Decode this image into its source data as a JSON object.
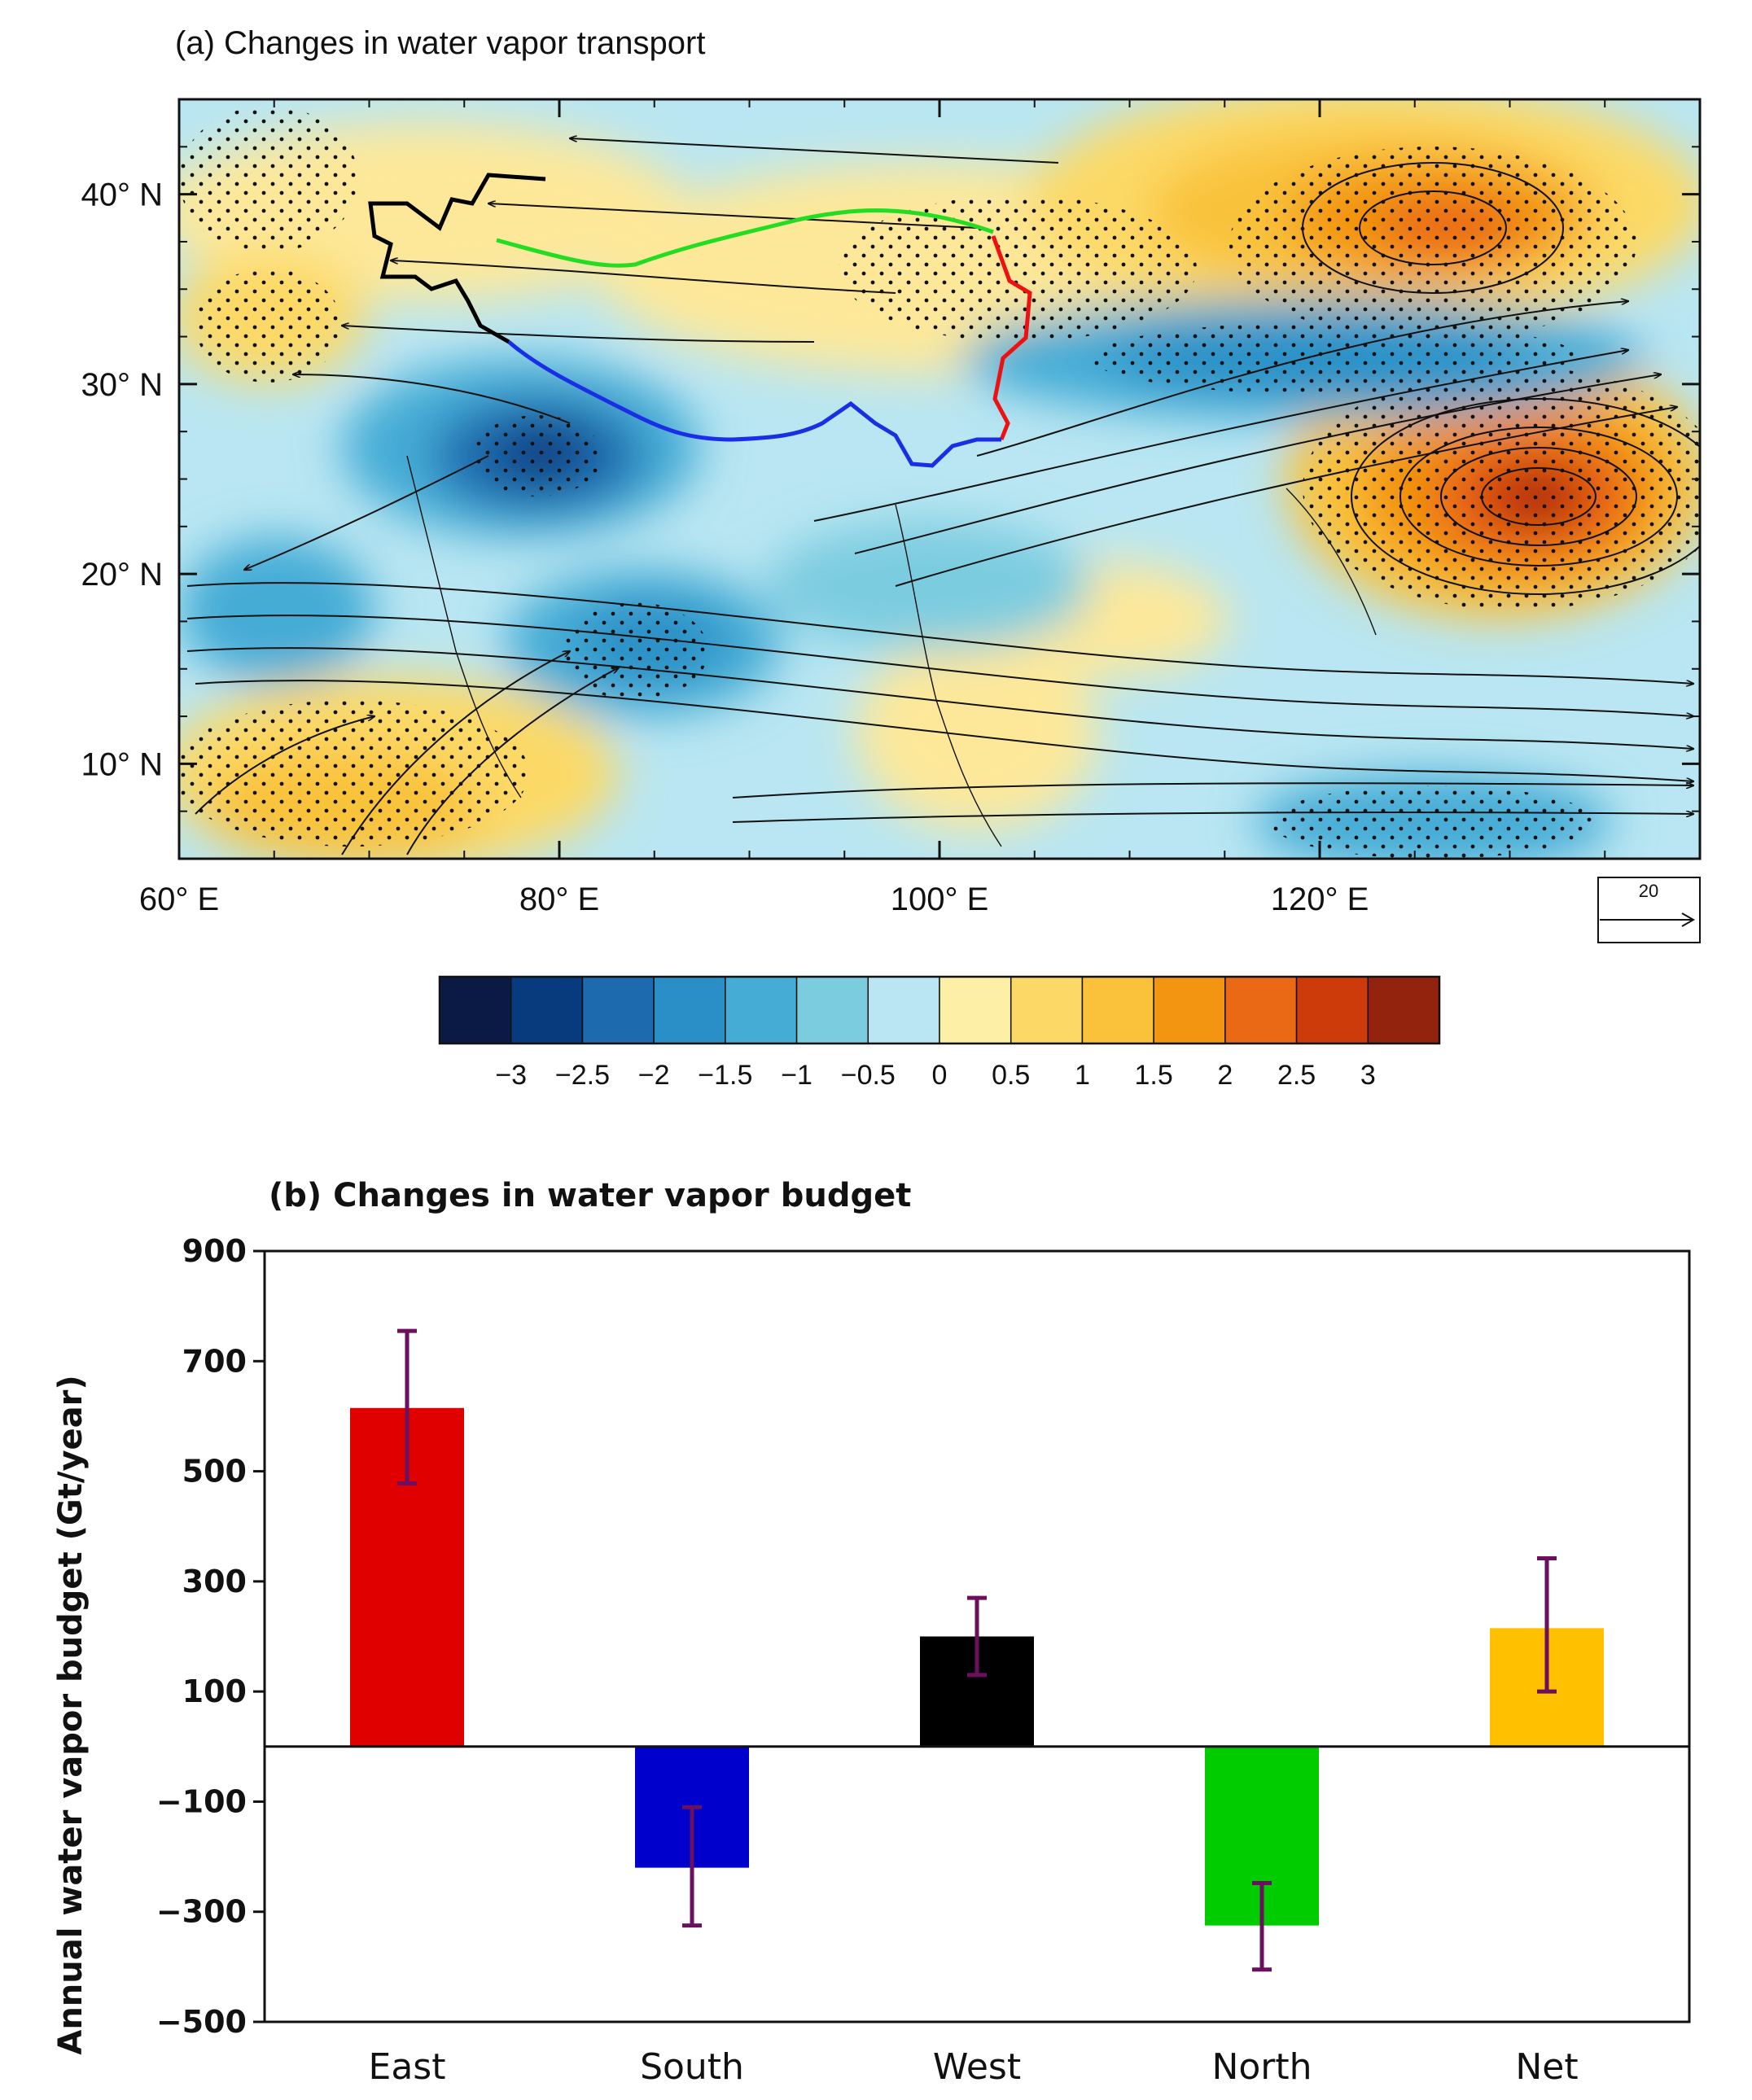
{
  "chart_data": [
    {
      "type": "heatmap",
      "title": "(a) Changes in water vapor transport",
      "x_ticks": [
        "60° E",
        "80° E",
        "100° E",
        "120° E"
      ],
      "x_tick_values": [
        60,
        80,
        100,
        120
      ],
      "y_ticks": [
        "10° N",
        "20° N",
        "30° N",
        "40° N"
      ],
      "y_tick_values": [
        10,
        20,
        30,
        40
      ],
      "xlim": [
        60,
        140
      ],
      "ylim": [
        5,
        45
      ],
      "reference_vector": "20",
      "colorbar": {
        "labels": [
          "−3",
          "−2.5",
          "−2",
          "−1.5",
          "−1",
          "−0.5",
          "0",
          "0.5",
          "1",
          "1.5",
          "2",
          "2.5",
          "3"
        ],
        "colors": [
          "#0a1a45",
          "#083a7e",
          "#1d6bae",
          "#2a8fc6",
          "#45acd6",
          "#7ccce0",
          "#b9e6f2",
          "#fdf0a6",
          "#fcd966",
          "#f9c23a",
          "#f39511",
          "#ea6914",
          "#cd3b0a",
          "#94230e"
        ]
      },
      "features": [
        {
          "name": "Anticyclone (positive anomaly) near 128° E, 24° N",
          "value": 3
        },
        {
          "name": "Positive anomaly near 125° E, 39° N",
          "value": 2
        },
        {
          "name": "Negative anomaly near 79° E, 27° N",
          "value": -3
        },
        {
          "name": "Negative band 105°–135° E, 30° N",
          "value": -1.5
        }
      ],
      "boundaries": [
        {
          "name": "North",
          "color": "#22dd22"
        },
        {
          "name": "East",
          "color": "#ee1111"
        },
        {
          "name": "South",
          "color": "#1a2ee6"
        },
        {
          "name": "West",
          "color": "#000000"
        }
      ]
    },
    {
      "type": "bar",
      "title": "(b) Changes in water vapor budget",
      "categories": [
        "East",
        "South",
        "West",
        "North",
        "Net"
      ],
      "values": [
        615,
        -220,
        200,
        -325,
        215
      ],
      "err_low": [
        478,
        -325,
        130,
        -405,
        100
      ],
      "err_high": [
        755,
        -110,
        270,
        -248,
        342
      ],
      "colors": [
        "#e00000",
        "#0000cc",
        "#000000",
        "#00cc00",
        "#ffc000"
      ],
      "error_color": "#6b0f5f",
      "ylabel": "Annual water vapor budget (Gt/year)",
      "xlabel": "",
      "ylim": [
        -500,
        900
      ],
      "yticks": [
        -500,
        -300,
        -100,
        100,
        300,
        500,
        700,
        900
      ],
      "ytick_labels": [
        "−500",
        "−300",
        "−100",
        "100",
        "300",
        "500",
        "700",
        "900"
      ]
    }
  ]
}
